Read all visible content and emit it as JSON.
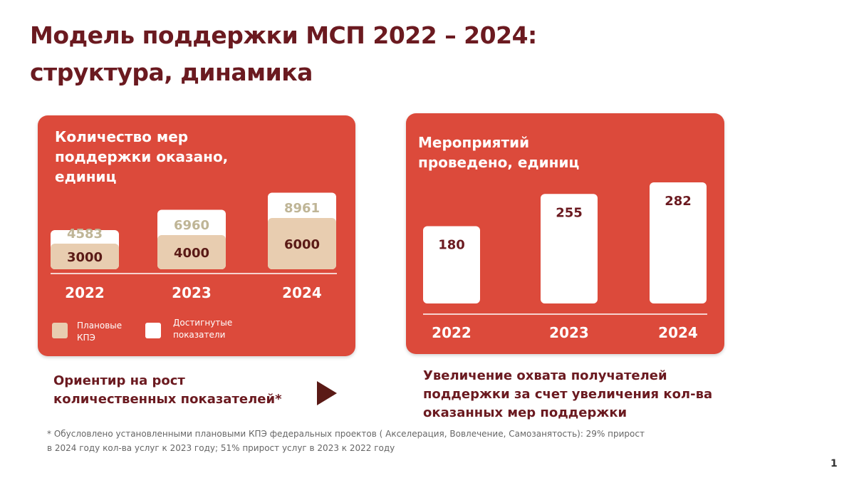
{
  "title": {
    "line1": "Модель поддержки МСП 2022 – 2024:",
    "line2": "структура, динамика"
  },
  "colors": {
    "panel": "#dc4a3b",
    "plan": "#e8cdb0",
    "achieved": "#ffffff",
    "title": "#6b1a20",
    "achieved_text": "#bfb596",
    "plan_text": "#5a1a16"
  },
  "left_panel": {
    "title_lines": [
      "Количество мер",
      "поддержки оказано,",
      "единиц"
    ],
    "legend": [
      {
        "label_lines": [
          "Плановые",
          "КПЭ"
        ],
        "color": "#e8cdb0"
      },
      {
        "label_lines": [
          "Достигнутые",
          "показатели"
        ],
        "color": "#ffffff"
      }
    ]
  },
  "right_panel": {
    "title_lines": [
      "Мероприятий",
      "проведено, единиц"
    ]
  },
  "chart_data": [
    {
      "type": "bar",
      "title": "Количество мер поддержки оказано, единиц",
      "categories": [
        "2022",
        "2023",
        "2024"
      ],
      "series": [
        {
          "name": "Плановые КПЭ",
          "values": [
            3000,
            4000,
            6000
          ]
        },
        {
          "name": "Достигнутые показатели",
          "values": [
            4583,
            6960,
            8961
          ]
        }
      ],
      "ylim": [
        0,
        10000
      ],
      "legend": "bottom-left"
    },
    {
      "type": "bar",
      "title": "Мероприятий проведено, единиц",
      "categories": [
        "2022",
        "2023",
        "2024"
      ],
      "values": [
        180,
        255,
        282
      ],
      "ylim": [
        0,
        300
      ]
    }
  ],
  "captions": {
    "left_lines": [
      "Ориентир на рост",
      "количественных показателей*"
    ],
    "right_lines": [
      "Увеличение охвата получателей",
      "поддержки за счет увеличения кол-ва",
      "оказанных мер поддержки"
    ]
  },
  "footnote_lines": [
    "* Обусловлено установленными плановыми КПЭ федеральных проектов ( Акселерация, Вовлечение, Самозанятость): 29% прирост",
    "в 2024 году кол-ва услуг к 2023 году; 51% прирост услуг в 2023 к 2022 году"
  ],
  "page_number": "1"
}
